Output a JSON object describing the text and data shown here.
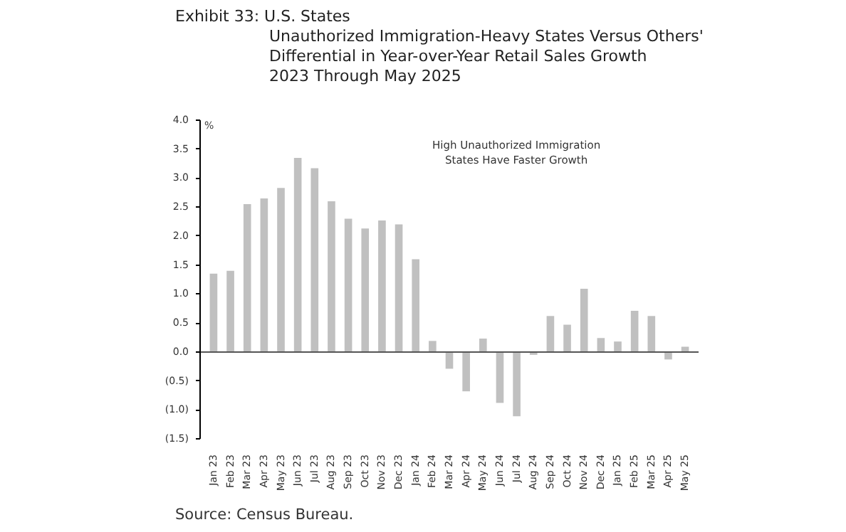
{
  "chart_data": {
    "type": "bar",
    "title": "Exhibit 33: U.S. States",
    "subtitle": "Unauthorized Immigration-Heavy States Versus Others'\nDifferential in Year-over-Year Retail Sales Growth\n2023 Through May 2025",
    "ylabel": "%",
    "categories": [
      "Jan 23",
      "Feb 23",
      "Mar 23",
      "Apr 23",
      "May 23",
      "Jun 23",
      "Jul 23",
      "Aug 23",
      "Sep 23",
      "Oct 23",
      "Nov 23",
      "Dec 23",
      "Jan 24",
      "Feb 24",
      "Mar 24",
      "Apr 24",
      "May 24",
      "Jun 24",
      "Jul 24",
      "Aug 24",
      "Sep 24",
      "Oct 24",
      "Nov 24",
      "Dec 24",
      "Jan 25",
      "Feb 25",
      "Mar 25",
      "Apr 25",
      "May 25"
    ],
    "values": [
      1.35,
      1.4,
      2.55,
      2.65,
      2.83,
      3.35,
      3.17,
      2.6,
      2.3,
      2.13,
      2.27,
      2.2,
      1.6,
      0.19,
      -0.29,
      -0.68,
      0.23,
      -0.88,
      -1.11,
      -0.05,
      0.62,
      0.47,
      1.09,
      0.24,
      0.18,
      0.71,
      0.62,
      -0.13,
      0.09
    ],
    "color": "#c0c0c0",
    "ylim": [
      -1.5,
      4.0
    ],
    "yticks": [
      {
        "value": -1.5,
        "label": "(1.5)"
      },
      {
        "value": -1.0,
        "label": "(1.0)"
      },
      {
        "value": -0.5,
        "label": "(0.5)"
      },
      "0.0",
      "0.5",
      "1.0",
      "1.5",
      "2.0",
      "2.5",
      "3.0",
      "3.5",
      "4.0"
    ],
    "grid": false,
    "annotations": [
      "High Unauthorized Immigration\nStates Have Faster Growth",
      "Source: Census Bureau."
    ]
  }
}
